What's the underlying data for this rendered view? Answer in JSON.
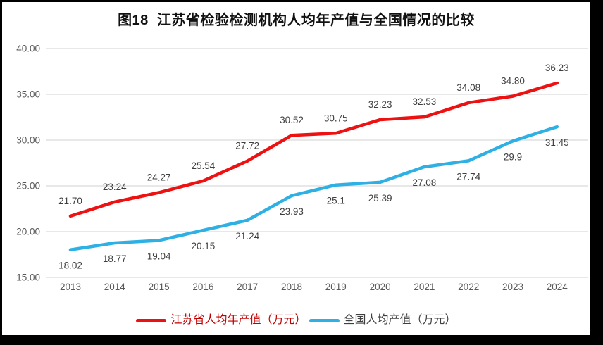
{
  "frame": {
    "background_color": "#000000",
    "panel_color": "#ffffff"
  },
  "title": "图18  江苏省检验检测机构人均年产值与全国情况的比较",
  "chart_data": {
    "type": "line",
    "title": "图18  江苏省检验检测机构人均年产值与全国情况的比较",
    "categories": [
      "2013",
      "2014",
      "2015",
      "2016",
      "2017",
      "2018",
      "2019",
      "2020",
      "2021",
      "2022",
      "2023",
      "2024"
    ],
    "ylim": [
      15,
      40
    ],
    "ytick_labels": [
      "40.00",
      "35.00",
      "30.00",
      "25.00",
      "20.00",
      "15.00"
    ],
    "grid": true,
    "legend_position": "bottom",
    "axis_text_color": "#595959",
    "data_label_color": "#3f3f3f",
    "gridline_color": "#e0e0e0",
    "series": [
      {
        "name": "江苏省人均年产值（万元）",
        "color": "#ed1111",
        "legend_text_color": "#c00000",
        "label_position": "above",
        "values": [
          21.7,
          23.24,
          24.27,
          25.54,
          27.72,
          30.52,
          30.75,
          32.23,
          32.53,
          34.08,
          34.8,
          36.23
        ],
        "data_labels": [
          "21.70",
          "23.24",
          "24.27",
          "25.54",
          "27.72",
          "30.52",
          "30.75",
          "32.23",
          "32.53",
          "34.08",
          "34.80",
          "36.23"
        ]
      },
      {
        "name": "全国人均产值（万元）",
        "color": "#2eb0e4",
        "legend_text_color": "#3f3f3f",
        "label_position": "below",
        "values": [
          18.02,
          18.77,
          19.04,
          20.15,
          21.24,
          23.93,
          25.1,
          25.39,
          27.08,
          27.74,
          29.9,
          31.45
        ],
        "data_labels": [
          "18.02",
          "18.77",
          "19.04",
          "20.15",
          "21.24",
          "23.93",
          "25.1",
          "25.39",
          "27.08",
          "27.74",
          "29.9",
          "31.45"
        ]
      }
    ]
  }
}
